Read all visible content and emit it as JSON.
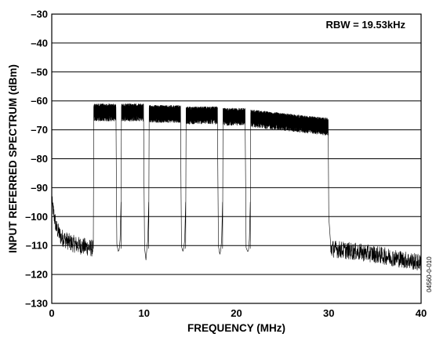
{
  "chart_data": {
    "type": "line",
    "xlabel": "FREQUENCY (MHz)",
    "ylabel": "INPUT REFERRED SPECTRUM (dBm)",
    "xlim": [
      0,
      40
    ],
    "ylim": [
      -130,
      -30
    ],
    "x_ticks": [
      0,
      10,
      20,
      30,
      40
    ],
    "x_tick_labels": [
      "0",
      "10",
      "20",
      "30",
      "40"
    ],
    "y_ticks": [
      -30,
      -40,
      -50,
      -60,
      -70,
      -80,
      -90,
      -100,
      -110,
      -120,
      -130
    ],
    "y_tick_labels": [
      "–30",
      "–40",
      "–50",
      "–60",
      "–70",
      "–80",
      "–90",
      "–100",
      "–110",
      "–120",
      "–130"
    ],
    "grid": {
      "horizontal": true,
      "vertical": false
    },
    "annotation": "RBW = 19.53kHz",
    "figure_id": "04560-0-010",
    "series": [
      {
        "noise_floor": [
          {
            "x": 0.0,
            "y": -95
          },
          {
            "x": 0.5,
            "y": -104
          },
          {
            "x": 1.0,
            "y": -107
          },
          {
            "x": 2.0,
            "y": -109
          },
          {
            "x": 3.0,
            "y": -110
          },
          {
            "x": 4.5,
            "y": -111
          }
        ],
        "passbands": [
          {
            "start": 4.5,
            "end": 7.0,
            "top": -61,
            "bottom": -67
          },
          {
            "start": 7.5,
            "end": 10.0,
            "top": -61,
            "bottom": -67
          },
          {
            "start": 10.5,
            "end": 14.0,
            "top": -61.5,
            "bottom": -67.5
          },
          {
            "start": 14.5,
            "end": 18.0,
            "top": -62,
            "bottom": -68
          },
          {
            "start": 18.5,
            "end": 21.0,
            "top": -62.5,
            "bottom": -68.5
          },
          {
            "start": 21.5,
            "end": 30.0,
            "top": -63,
            "bottom": -69,
            "end_top": -66,
            "end_bottom": -72
          }
        ],
        "notches": [
          {
            "x": 7.2,
            "y": -112
          },
          {
            "x": 10.2,
            "y": -115
          },
          {
            "x": 14.2,
            "y": -112
          },
          {
            "x": 18.2,
            "y": -113
          },
          {
            "x": 21.2,
            "y": -112
          }
        ],
        "upper_noise_floor": [
          {
            "x": 30.2,
            "y": -111
          },
          {
            "x": 35.0,
            "y": -113
          },
          {
            "x": 40.0,
            "y": -116
          }
        ]
      }
    ]
  }
}
